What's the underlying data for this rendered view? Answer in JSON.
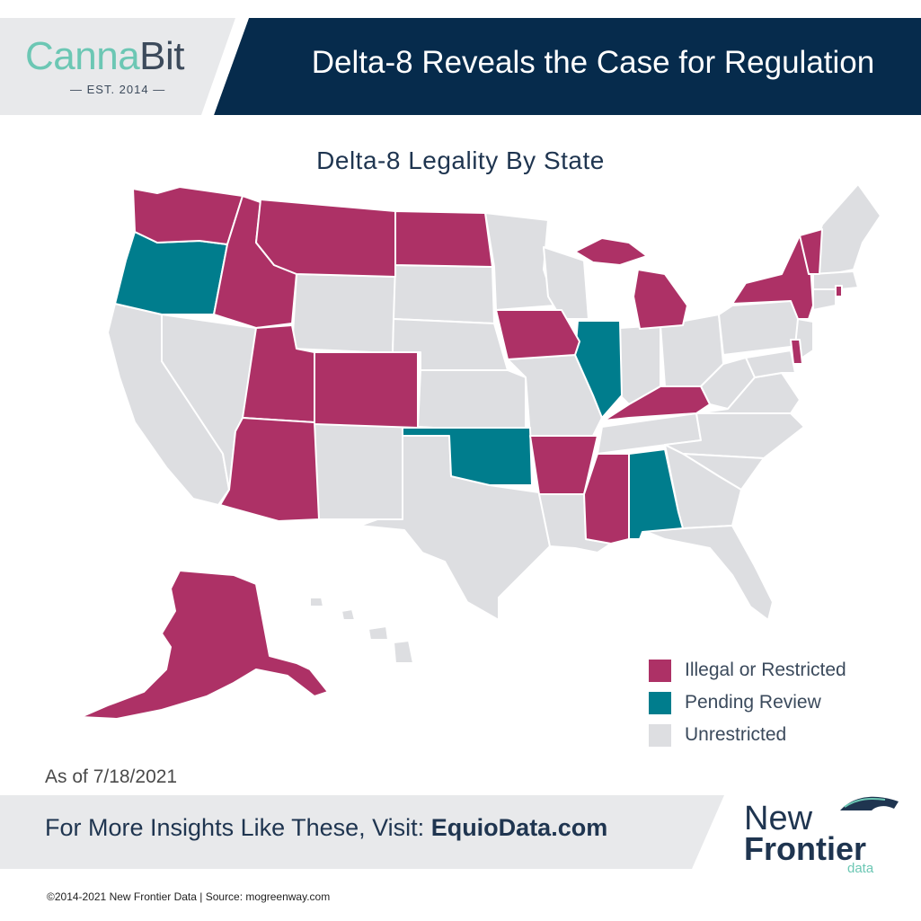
{
  "header": {
    "logo_part1": "Canna",
    "logo_part2": "Bit",
    "logo_tagline": "— EST. 2014 —",
    "title": "Delta-8 Reveals the Case for Regulation"
  },
  "map": {
    "title": "Delta-8 Legality By State",
    "states": {
      "illegal_or_restricted": [
        "Washington",
        "Idaho",
        "Montana",
        "North Dakota",
        "Utah",
        "Colorado",
        "Arizona",
        "Iowa",
        "Arkansas",
        "Mississippi",
        "Kentucky",
        "Michigan",
        "New York",
        "Vermont",
        "Rhode Island",
        "Delaware",
        "Alaska"
      ],
      "pending_review": [
        "Oregon",
        "Oklahoma",
        "Illinois",
        "Alabama"
      ],
      "unrestricted": [
        "California",
        "Nevada",
        "Wyoming",
        "South Dakota",
        "Nebraska",
        "Kansas",
        "New Mexico",
        "Texas",
        "Minnesota",
        "Wisconsin",
        "Missouri",
        "Louisiana",
        "Tennessee",
        "Indiana",
        "Ohio",
        "West Virginia",
        "Virginia",
        "North Carolina",
        "South Carolina",
        "Georgia",
        "Florida",
        "Pennsylvania",
        "New Jersey",
        "Maryland",
        "Connecticut",
        "Massachusetts",
        "New Hampshire",
        "Maine",
        "Hawaii"
      ]
    }
  },
  "legend": [
    {
      "label": "Illegal or Restricted",
      "color": "#ad3166"
    },
    {
      "label": "Pending Review",
      "color": "#007d8d"
    },
    {
      "label": "Unrestricted",
      "color": "#dddee1"
    }
  ],
  "colors": {
    "header_bar": "#062b4c",
    "footer_band": "#e8e9eb",
    "illegal": "#ad3166",
    "pending": "#007d8d",
    "unrestricted": "#dddee1"
  },
  "date_note": "As of 7/18/2021",
  "footer": {
    "prefix": "For More Insights Like These, Visit: ",
    "link": "EquioData.com"
  },
  "brand": {
    "line1": "New",
    "line2": "Frontier",
    "line3": "data"
  },
  "copyright": "©2014-2021  New Frontier Data | Source: mogreenway.com"
}
